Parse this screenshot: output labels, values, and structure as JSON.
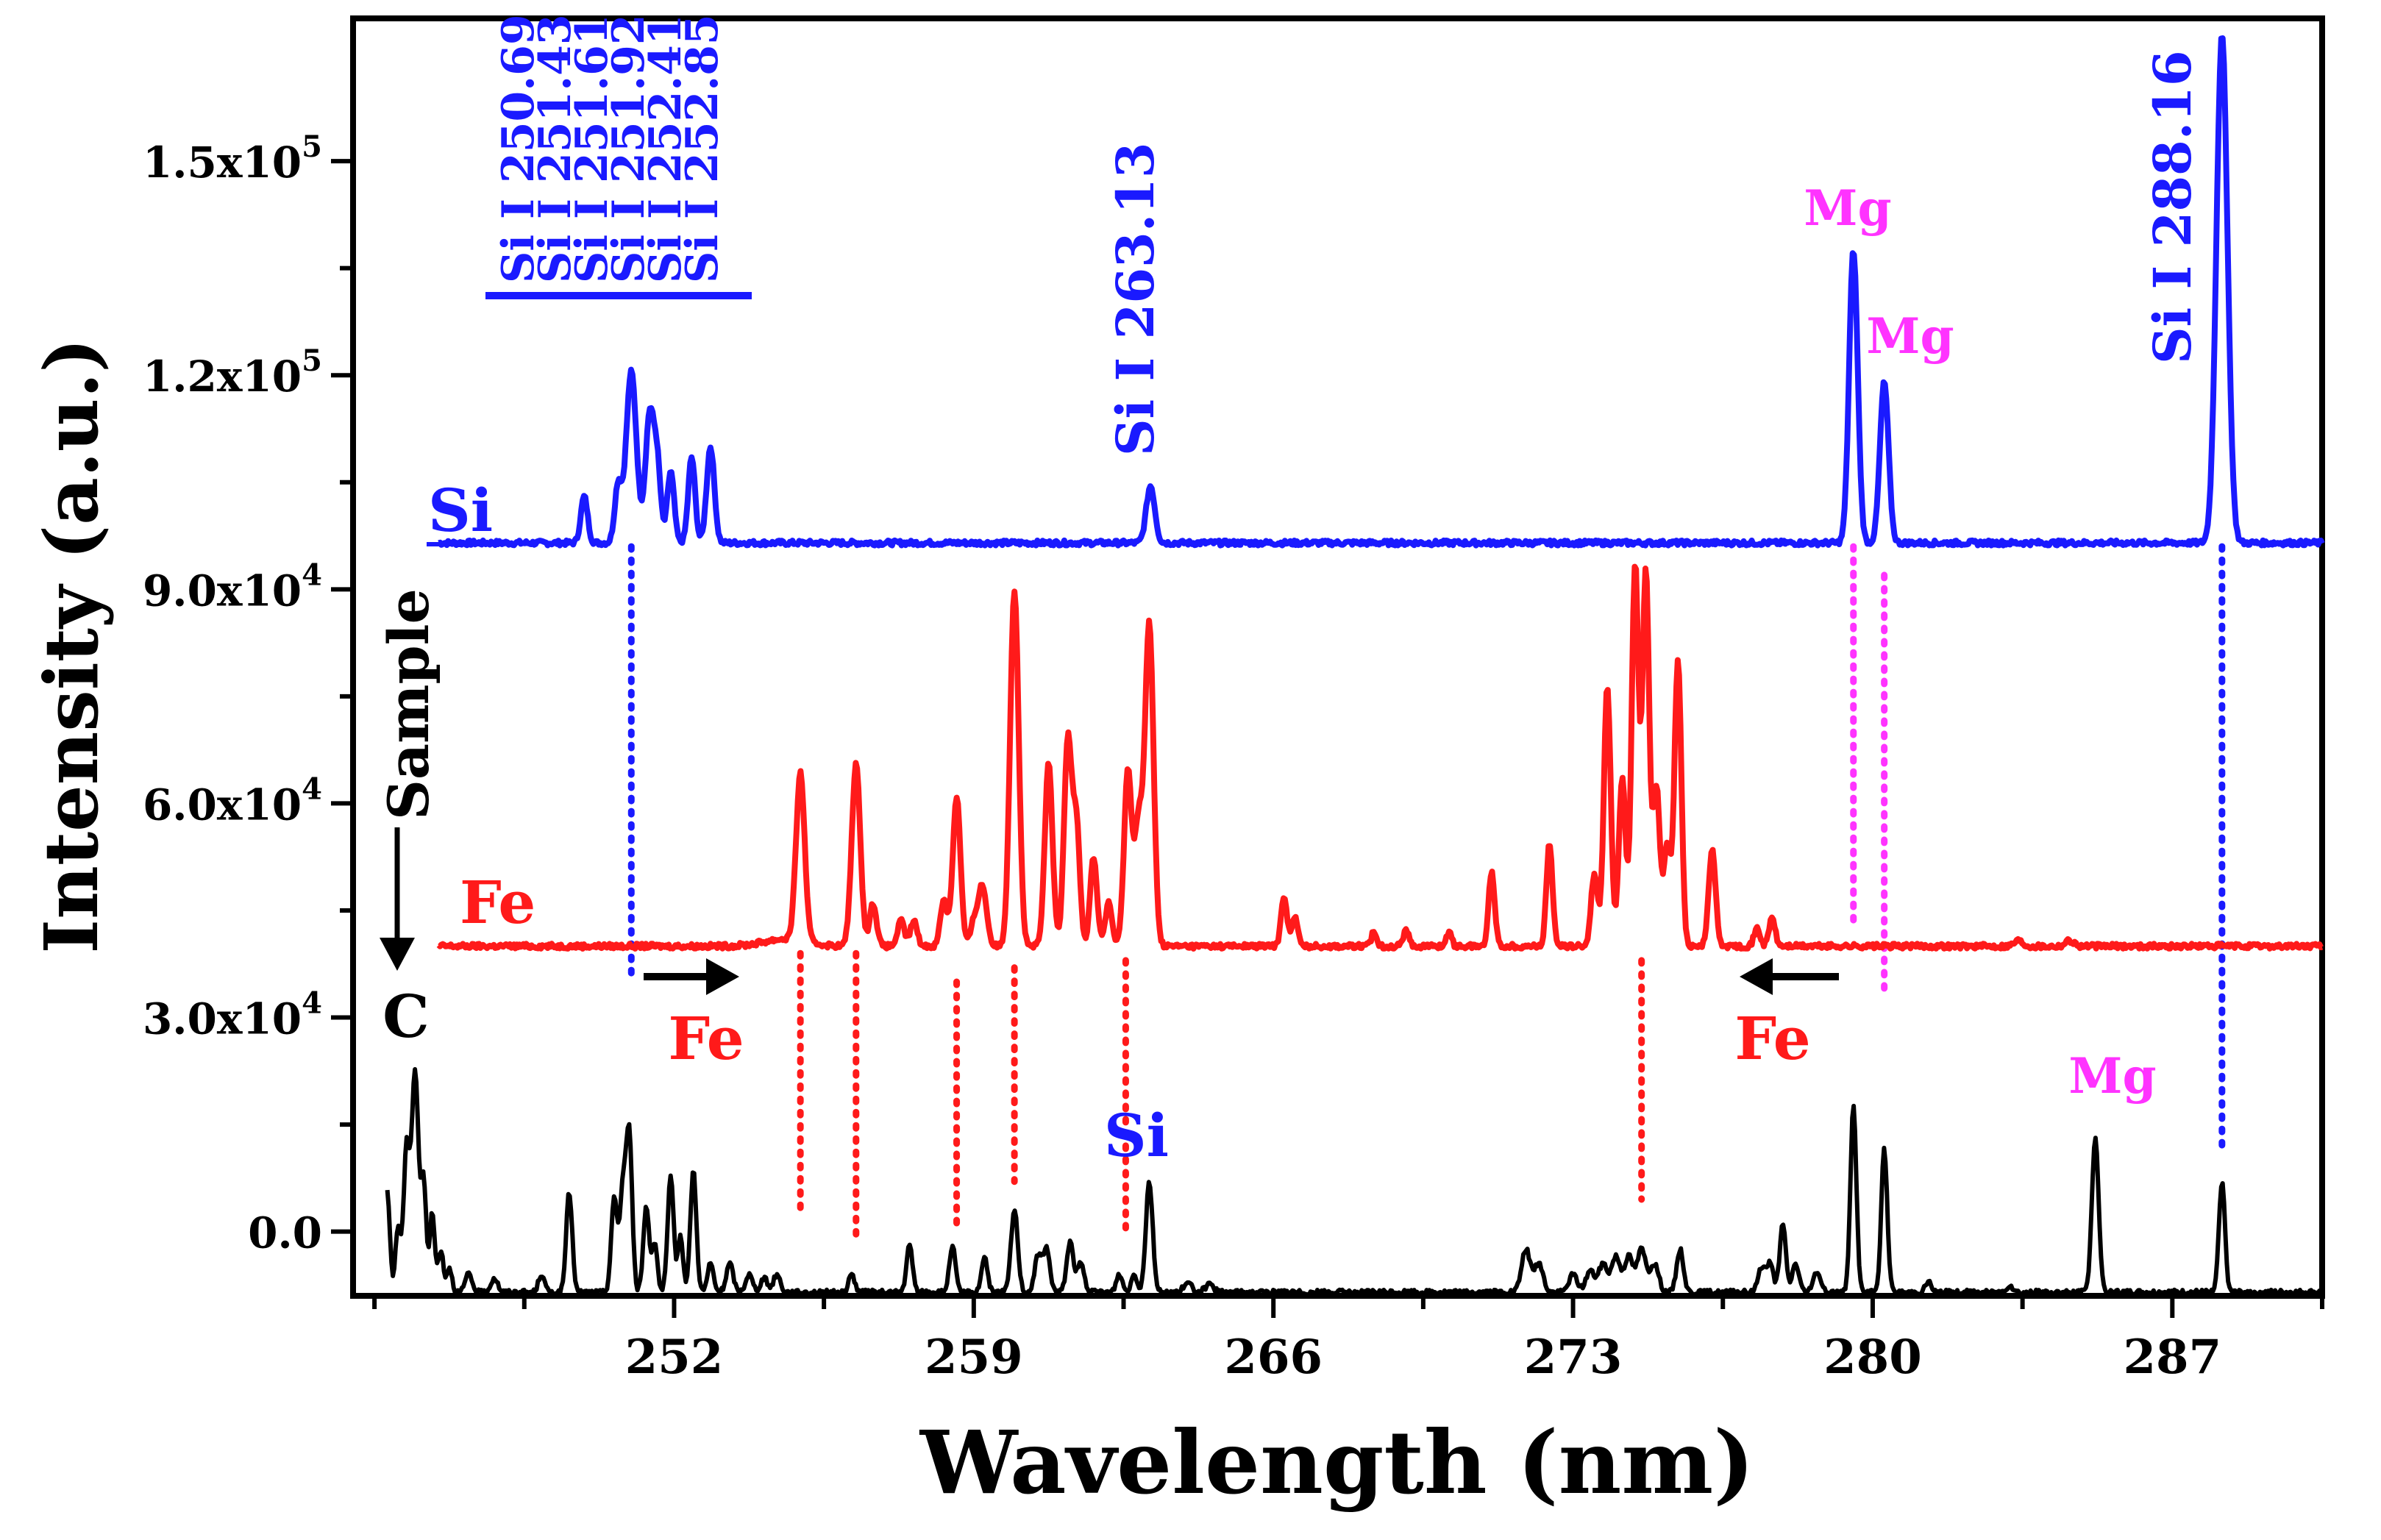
{
  "chart_data": {
    "type": "line",
    "title": "",
    "xlabel": "Wavelength (nm)",
    "ylabel": "Intensity (a.u.)",
    "xlim": [
      244.5,
      290.5
    ],
    "ylim": [
      -9000,
      170000
    ],
    "xticks": [
      252,
      259,
      266,
      273,
      280,
      287
    ],
    "yticks": [
      {
        "value": 0,
        "mantissa": "0.0",
        "exp": ""
      },
      {
        "value": 30000,
        "mantissa": "3.0x10",
        "exp": "4"
      },
      {
        "value": 60000,
        "mantissa": "6.0x10",
        "exp": "4"
      },
      {
        "value": 90000,
        "mantissa": "9.0x10",
        "exp": "4"
      },
      {
        "value": 120000,
        "mantissa": "1.2x10",
        "exp": "5"
      },
      {
        "value": 150000,
        "mantissa": "1.5x10",
        "exp": "5"
      }
    ],
    "series": [
      {
        "name": "Si",
        "color": "#1a1aff",
        "baseline": 96500,
        "x_start": 246.5,
        "x_end": 290.5,
        "peaks": [
          [
            249.9,
            6500,
            0.08
          ],
          [
            250.69,
            8000,
            0.08
          ],
          [
            251.0,
            24000,
            0.12
          ],
          [
            251.43,
            18000,
            0.1
          ],
          [
            251.61,
            10000,
            0.08
          ],
          [
            251.92,
            10000,
            0.08
          ],
          [
            252.41,
            12000,
            0.08
          ],
          [
            252.85,
            13500,
            0.09
          ],
          [
            263.13,
            8000,
            0.1
          ],
          [
            279.55,
            41000,
            0.1
          ],
          [
            280.27,
            22500,
            0.1
          ],
          [
            288.16,
            71000,
            0.13
          ]
        ]
      },
      {
        "name": "Fe",
        "color": "#ff1a1a",
        "baseline": 40000,
        "x_start": 246.5,
        "x_end": 290.5,
        "peaks": [
          [
            254.6,
            1000,
            0.5
          ],
          [
            254.95,
            23500,
            0.1
          ],
          [
            256.25,
            25500,
            0.1
          ],
          [
            256.65,
            6000,
            0.08
          ],
          [
            257.3,
            3500,
            0.08
          ],
          [
            257.6,
            3500,
            0.08
          ],
          [
            258.3,
            6500,
            0.08
          ],
          [
            258.6,
            21000,
            0.09
          ],
          [
            259.0,
            3000,
            0.08
          ],
          [
            259.2,
            8500,
            0.1
          ],
          [
            259.95,
            50000,
            0.1
          ],
          [
            260.75,
            25500,
            0.09
          ],
          [
            261.2,
            29000,
            0.09
          ],
          [
            261.4,
            17000,
            0.08
          ],
          [
            261.8,
            12500,
            0.08
          ],
          [
            262.15,
            6000,
            0.08
          ],
          [
            262.6,
            24500,
            0.09
          ],
          [
            262.85,
            17000,
            0.09
          ],
          [
            263.1,
            45000,
            0.1
          ],
          [
            266.25,
            7000,
            0.07
          ],
          [
            266.5,
            4000,
            0.07
          ],
          [
            268.35,
            2000,
            0.06
          ],
          [
            269.1,
            2500,
            0.06
          ],
          [
            270.1,
            2000,
            0.06
          ],
          [
            271.1,
            10500,
            0.07
          ],
          [
            272.45,
            14500,
            0.07
          ],
          [
            273.5,
            10000,
            0.08
          ],
          [
            273.8,
            36500,
            0.08
          ],
          [
            274.15,
            23500,
            0.08
          ],
          [
            274.45,
            53500,
            0.08
          ],
          [
            274.7,
            52500,
            0.08
          ],
          [
            274.95,
            22000,
            0.08
          ],
          [
            275.2,
            14000,
            0.08
          ],
          [
            275.45,
            40000,
            0.08
          ],
          [
            276.25,
            13500,
            0.08
          ],
          [
            277.3,
            2500,
            0.07
          ],
          [
            277.65,
            4000,
            0.07
          ],
          [
            283.4,
            800,
            0.1
          ],
          [
            284.6,
            800,
            0.1
          ]
        ]
      },
      {
        "name": "Sample",
        "color": "#000000",
        "baseline": -8500,
        "x_start": 245.3,
        "x_end": 290.5,
        "peaks": [
          [
            245.3,
            14000,
            0.06
          ],
          [
            245.55,
            9000,
            0.06
          ],
          [
            245.75,
            20000,
            0.07
          ],
          [
            245.95,
            31000,
            0.08
          ],
          [
            246.15,
            15000,
            0.06
          ],
          [
            246.35,
            11000,
            0.06
          ],
          [
            246.55,
            6000,
            0.06
          ],
          [
            246.75,
            3500,
            0.06
          ],
          [
            247.2,
            2500,
            0.08
          ],
          [
            247.8,
            2000,
            0.08
          ],
          [
            248.9,
            2500,
            0.07
          ],
          [
            249.55,
            14000,
            0.07
          ],
          [
            250.6,
            13000,
            0.07
          ],
          [
            250.8,
            14000,
            0.07
          ],
          [
            250.95,
            22000,
            0.07
          ],
          [
            251.35,
            12000,
            0.07
          ],
          [
            251.55,
            7000,
            0.06
          ],
          [
            251.92,
            16000,
            0.07
          ],
          [
            252.15,
            8000,
            0.06
          ],
          [
            252.45,
            17000,
            0.07
          ],
          [
            252.85,
            4000,
            0.07
          ],
          [
            253.3,
            4000,
            0.08
          ],
          [
            253.75,
            2500,
            0.08
          ],
          [
            254.1,
            2000,
            0.08
          ],
          [
            254.4,
            2500,
            0.08
          ],
          [
            256.15,
            2500,
            0.07
          ],
          [
            257.5,
            6500,
            0.07
          ],
          [
            258.5,
            6500,
            0.07
          ],
          [
            259.25,
            5000,
            0.07
          ],
          [
            259.95,
            11500,
            0.08
          ],
          [
            260.5,
            5000,
            0.08
          ],
          [
            260.7,
            6000,
            0.08
          ],
          [
            261.25,
            7000,
            0.08
          ],
          [
            261.5,
            4000,
            0.08
          ],
          [
            262.4,
            2500,
            0.07
          ],
          [
            262.75,
            2500,
            0.07
          ],
          [
            263.1,
            15500,
            0.08
          ],
          [
            264.0,
            1200,
            0.1
          ],
          [
            264.5,
            1000,
            0.1
          ],
          [
            271.9,
            6000,
            0.1
          ],
          [
            272.2,
            4000,
            0.1
          ],
          [
            273.0,
            2500,
            0.1
          ],
          [
            273.4,
            3000,
            0.1
          ],
          [
            273.7,
            4000,
            0.1
          ],
          [
            274.0,
            5000,
            0.1
          ],
          [
            274.3,
            5000,
            0.1
          ],
          [
            274.6,
            6000,
            0.1
          ],
          [
            274.9,
            4000,
            0.1
          ],
          [
            275.5,
            6000,
            0.08
          ],
          [
            277.4,
            3500,
            0.08
          ],
          [
            277.6,
            4000,
            0.08
          ],
          [
            277.9,
            9500,
            0.07
          ],
          [
            278.2,
            4000,
            0.08
          ],
          [
            278.7,
            3000,
            0.08
          ],
          [
            279.55,
            26000,
            0.07
          ],
          [
            280.27,
            20000,
            0.07
          ],
          [
            281.3,
            1500,
            0.07
          ],
          [
            283.2,
            1000,
            0.08
          ],
          [
            285.2,
            21500,
            0.08
          ],
          [
            288.16,
            15500,
            0.07
          ]
        ]
      }
    ],
    "annotations": {
      "si_cluster": [
        "Si I 250.69",
        "Si I 251.43",
        "Si I 251.61",
        "Si I 251.92",
        "Si I 252.41",
        "Si I 252.85"
      ],
      "si_263": "Si I 263.13",
      "si_288": "Si I 288.16",
      "mg_upper_1": "Mg",
      "mg_upper_2": "Mg",
      "mg_lower": "Mg",
      "fe_left": "Fe",
      "fe_right": "Fe",
      "si_lower": "Si",
      "c_label": "C",
      "sample_label": "Sample",
      "fe_series_label": "Fe",
      "si_series_label": "Si"
    },
    "guide_lines": [
      {
        "x": 251.0,
        "y_from": 96000,
        "y_to": 35000,
        "color": "#1a1aff"
      },
      {
        "x": 288.16,
        "y_from": 96000,
        "y_to": 11000,
        "color": "#1a1aff"
      },
      {
        "x": 279.55,
        "y_from": 96000,
        "y_to": 43000,
        "color": "#ff33ff"
      },
      {
        "x": 280.27,
        "y_from": 92000,
        "y_to": 33000,
        "color": "#ff33ff"
      },
      {
        "x": 254.95,
        "y_from": 39000,
        "y_to": 2500,
        "color": "#ff1a1a"
      },
      {
        "x": 256.25,
        "y_from": 39000,
        "y_to": -500,
        "color": "#ff1a1a"
      },
      {
        "x": 258.6,
        "y_from": 35000,
        "y_to": 500,
        "color": "#ff1a1a"
      },
      {
        "x": 259.95,
        "y_from": 37000,
        "y_to": 7000,
        "color": "#ff1a1a"
      },
      {
        "x": 262.55,
        "y_from": 38000,
        "y_to": 500,
        "color": "#ff1a1a"
      },
      {
        "x": 274.6,
        "y_from": 38000,
        "y_to": 4500,
        "color": "#ff1a1a"
      }
    ]
  }
}
